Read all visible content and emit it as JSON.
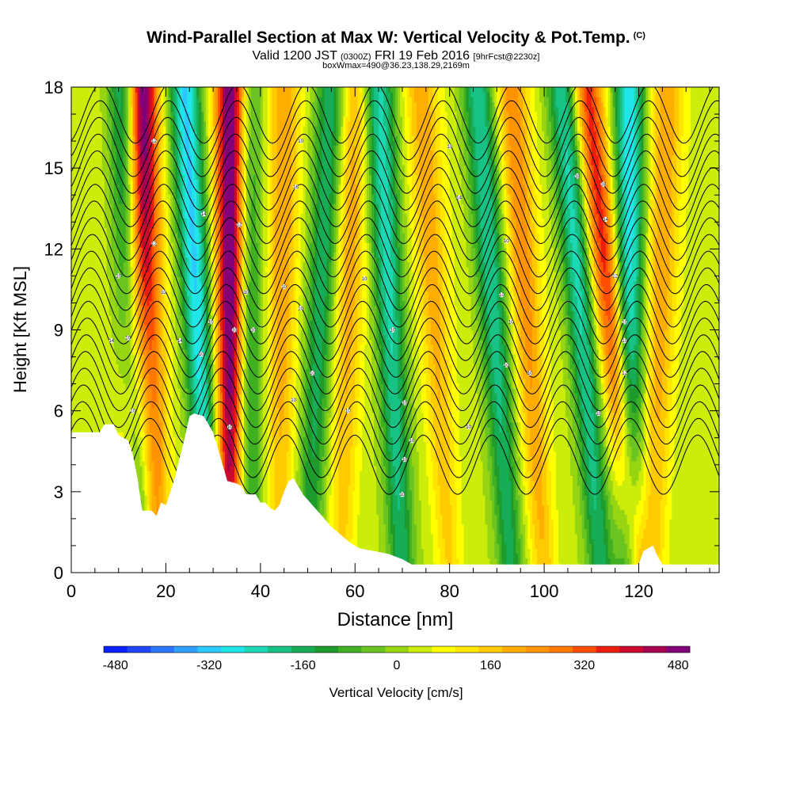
{
  "title": {
    "main": "Wind-Parallel Section at Max W: Vertical Velocity & Pot.Temp.",
    "copyright": "(C)",
    "valid_pre": "Valid 1200 JST",
    "valid_utc": "(0300Z)",
    "valid_date": "FRI 19 Feb 2016",
    "forecast": "[9hrFcst@2230z]",
    "box_info": "boxWmax=490@36.23,138.29,2169m"
  },
  "chart_data": {
    "type": "heatmap",
    "xlabel": "Distance [nm]",
    "ylabel": "Height [Kft MSL]",
    "xlim": [
      0,
      137
    ],
    "ylim": [
      0,
      18
    ],
    "x_ticks": [
      0,
      20,
      40,
      60,
      80,
      100,
      120
    ],
    "y_ticks": [
      0,
      3,
      6,
      9,
      12,
      15,
      18
    ],
    "colorbar": {
      "label": "Vertical Velocity [cm/s]",
      "min": -500,
      "max": 500,
      "step": 40,
      "tick_values": [
        -480,
        -320,
        -160,
        0,
        160,
        320,
        480
      ],
      "tick_labels": [
        "-480",
        "-320",
        "-160",
        "0",
        "160",
        "320",
        "480"
      ],
      "colors": [
        "#0a1fff",
        "#1e46ff",
        "#2a76ff",
        "#2fa0ff",
        "#2cc8ff",
        "#20e6ea",
        "#1cd8b4",
        "#18c284",
        "#16ad56",
        "#1e9b2c",
        "#3fb021",
        "#6ac421",
        "#97d412",
        "#ccec0a",
        "#ffff00",
        "#ffe500",
        "#ffca00",
        "#ffae00",
        "#ff9400",
        "#ff7800",
        "#ff4f00",
        "#ee1e0e",
        "#cc0a30",
        "#a80050",
        "#82007a"
      ]
    },
    "terrain_kft": [
      [
        0,
        5.2
      ],
      [
        6,
        5.2
      ],
      [
        7,
        5.5
      ],
      [
        9,
        5.5
      ],
      [
        10,
        5.1
      ],
      [
        12,
        4.9
      ],
      [
        13,
        4.4
      ],
      [
        14,
        3.5
      ],
      [
        15,
        2.3
      ],
      [
        17,
        2.3
      ],
      [
        18,
        2.1
      ],
      [
        19,
        2.6
      ],
      [
        20,
        2.5
      ],
      [
        21,
        3.0
      ],
      [
        22,
        3.6
      ],
      [
        23,
        4.3
      ],
      [
        24,
        5.0
      ],
      [
        25,
        5.8
      ],
      [
        26,
        5.9
      ],
      [
        28,
        5.8
      ],
      [
        29,
        5.5
      ],
      [
        30,
        5.2
      ],
      [
        31,
        4.6
      ],
      [
        32,
        4.0
      ],
      [
        33,
        3.4
      ],
      [
        35,
        3.3
      ],
      [
        36,
        3.2
      ],
      [
        37,
        2.9
      ],
      [
        39,
        2.9
      ],
      [
        40,
        2.6
      ],
      [
        41,
        2.6
      ],
      [
        42,
        2.4
      ],
      [
        43,
        2.3
      ],
      [
        44,
        2.5
      ],
      [
        45,
        3.0
      ],
      [
        46,
        3.4
      ],
      [
        47,
        3.5
      ],
      [
        48,
        3.2
      ],
      [
        49,
        2.9
      ],
      [
        51,
        2.5
      ],
      [
        53,
        2.1
      ],
      [
        55,
        1.7
      ],
      [
        57,
        1.4
      ],
      [
        59,
        1.1
      ],
      [
        61,
        0.9
      ],
      [
        64,
        0.8
      ],
      [
        67,
        0.7
      ],
      [
        70,
        0.5
      ],
      [
        72,
        0.3
      ],
      [
        75,
        0.3
      ],
      [
        120,
        0.3
      ],
      [
        121,
        0.8
      ],
      [
        123,
        1.0
      ],
      [
        124,
        0.6
      ],
      [
        125,
        0.3
      ],
      [
        137,
        0.3
      ]
    ],
    "updraft_axes": [
      {
        "sign": "up",
        "amp": 260,
        "x0": 12.0,
        "x18": 14.5
      },
      {
        "sign": "down",
        "amp": 300,
        "x0": 14.0,
        "x18": 11.5
      },
      {
        "sign": "up",
        "amp": 250,
        "x0": 18.5,
        "x18": 15.0
      },
      {
        "sign": "down",
        "amp": 320,
        "x0": 29.5,
        "x18": 24.0
      },
      {
        "sign": "up",
        "amp": 490,
        "x0": 33.5,
        "x18": 34.0
      },
      {
        "sign": "down",
        "amp": 200,
        "x0": 37.5,
        "x18": 37.0
      },
      {
        "sign": "up",
        "amp": 160,
        "x0": 44.0,
        "x18": 45.0
      },
      {
        "sign": "down",
        "amp": 200,
        "x0": 50.0,
        "x18": 55.0
      },
      {
        "sign": "up",
        "amp": 150,
        "x0": 57.0,
        "x18": 60.0
      },
      {
        "sign": "down",
        "amp": 260,
        "x0": 70.0,
        "x18": 65.0
      },
      {
        "sign": "up",
        "amp": 150,
        "x0": 80.0,
        "x18": 74.0
      },
      {
        "sign": "down",
        "amp": 240,
        "x0": 93.0,
        "x18": 86.0
      },
      {
        "sign": "up",
        "amp": 190,
        "x0": 100.0,
        "x18": 93.0
      },
      {
        "sign": "down",
        "amp": 260,
        "x0": 112.0,
        "x18": 104.0
      },
      {
        "sign": "up",
        "amp": 300,
        "x0": 119.5,
        "x18": 109.0
      },
      {
        "sign": "down",
        "amp": 300,
        "x0": 118.0,
        "x18": 118.0
      },
      {
        "sign": "up",
        "amp": 160,
        "x0": 123.0,
        "x18": 126.0
      }
    ],
    "theta_contours": {
      "count": 22,
      "lowest_kft": 4.0,
      "spacing_kft": 0.62,
      "wave_amplitude_kft": 1.1,
      "wavelength_nm": 14.5
    },
    "contour_labels": [
      {
        "text": "12",
        "x": 17.5,
        "y": 16.0
      },
      {
        "text": "10",
        "x": 48.5,
        "y": 16.0
      },
      {
        "text": "10",
        "x": 80.0,
        "y": 15.8
      },
      {
        "text": "18",
        "x": 107.0,
        "y": 14.7
      },
      {
        "text": "18",
        "x": 112.5,
        "y": 14.4
      },
      {
        "text": "16",
        "x": 47.5,
        "y": 14.3
      },
      {
        "text": "14",
        "x": 82.0,
        "y": 13.9
      },
      {
        "text": "14",
        "x": 28.0,
        "y": 13.3
      },
      {
        "text": "12",
        "x": 35.5,
        "y": 12.9
      },
      {
        "text": "14",
        "x": 113.0,
        "y": 13.1
      },
      {
        "text": "12",
        "x": 17.5,
        "y": 12.2
      },
      {
        "text": "10",
        "x": 92.0,
        "y": 12.3
      },
      {
        "text": "10",
        "x": 10.0,
        "y": 11.0
      },
      {
        "text": "12",
        "x": 115.0,
        "y": 11.0
      },
      {
        "text": "10",
        "x": 62.0,
        "y": 10.9
      },
      {
        "text": "10",
        "x": 45.0,
        "y": 10.6
      },
      {
        "text": "10",
        "x": 19.5,
        "y": 10.4
      },
      {
        "text": "10",
        "x": 37.0,
        "y": 10.4
      },
      {
        "text": "10",
        "x": 91.0,
        "y": 10.3
      },
      {
        "text": "10",
        "x": 48.5,
        "y": 9.8
      },
      {
        "text": "10",
        "x": 29.5,
        "y": 9.3
      },
      {
        "text": "10",
        "x": 93.0,
        "y": 9.3
      },
      {
        "text": "10",
        "x": 117.0,
        "y": 9.3
      },
      {
        "text": "10",
        "x": 34.5,
        "y": 9.0
      },
      {
        "text": "10",
        "x": 38.5,
        "y": 9.0
      },
      {
        "text": "10",
        "x": 68.0,
        "y": 9.0
      },
      {
        "text": "14",
        "x": 8.5,
        "y": 8.6
      },
      {
        "text": "10",
        "x": 12.0,
        "y": 8.7
      },
      {
        "text": "14",
        "x": 23.0,
        "y": 8.6
      },
      {
        "text": "10",
        "x": 117.0,
        "y": 8.6
      },
      {
        "text": "10",
        "x": 27.5,
        "y": 8.1
      },
      {
        "text": "10",
        "x": 92.0,
        "y": 7.7
      },
      {
        "text": "10",
        "x": 51.0,
        "y": 7.4
      },
      {
        "text": "10",
        "x": 97.0,
        "y": 7.4
      },
      {
        "text": "12",
        "x": 117.0,
        "y": 7.4
      },
      {
        "text": "10",
        "x": 47.0,
        "y": 6.4
      },
      {
        "text": "10",
        "x": 70.5,
        "y": 6.3
      },
      {
        "text": "10",
        "x": 13.0,
        "y": 6.0
      },
      {
        "text": "10",
        "x": 58.5,
        "y": 6.0
      },
      {
        "text": "10",
        "x": 111.5,
        "y": 5.9
      },
      {
        "text": "10",
        "x": 33.5,
        "y": 5.4
      },
      {
        "text": "10",
        "x": 84.0,
        "y": 5.4
      },
      {
        "text": "10",
        "x": 72.0,
        "y": 4.9
      },
      {
        "text": "10",
        "x": 70.5,
        "y": 4.2
      },
      {
        "text": "10",
        "x": 70.0,
        "y": 2.9
      }
    ]
  }
}
